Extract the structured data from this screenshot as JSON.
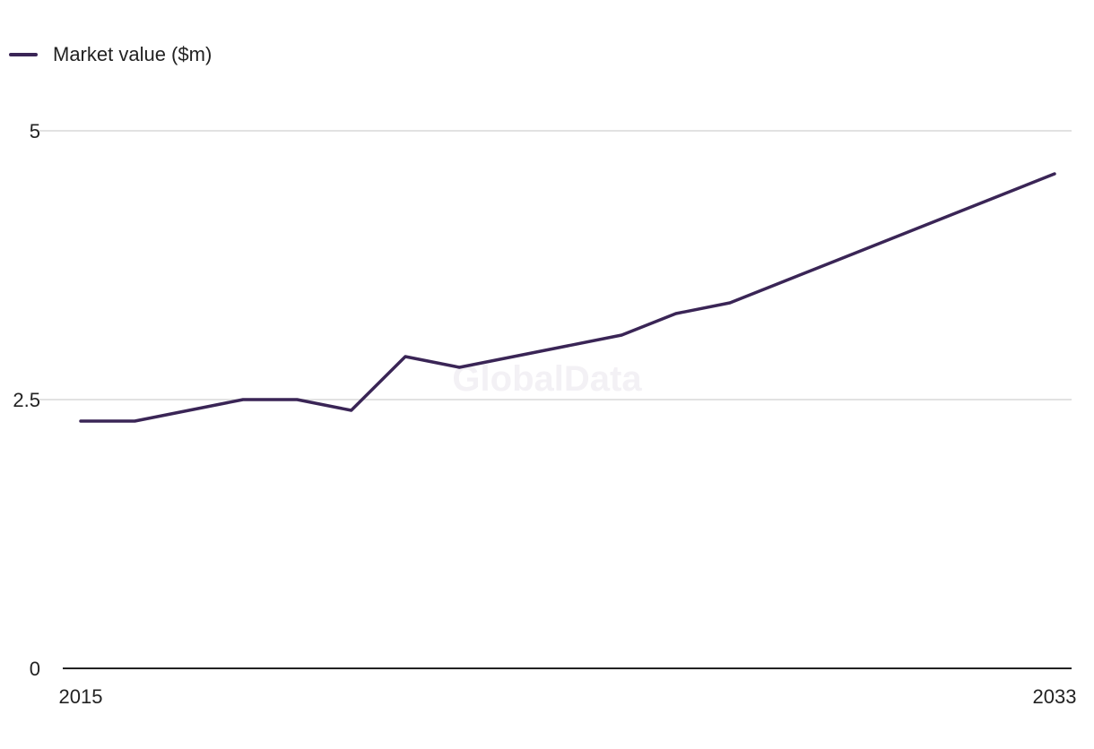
{
  "watermark": "GlobalData",
  "chart_data": {
    "type": "line",
    "title": "",
    "xlabel": "",
    "ylabel": "",
    "x": [
      2015,
      2016,
      2017,
      2018,
      2019,
      2020,
      2021,
      2022,
      2023,
      2024,
      2025,
      2026,
      2027,
      2028,
      2029,
      2030,
      2031,
      2032,
      2033
    ],
    "series": [
      {
        "name": "Market value ($m)",
        "color": "#3a2556",
        "values": [
          2.3,
          2.3,
          2.4,
          2.5,
          2.5,
          2.4,
          2.9,
          2.8,
          2.9,
          3.0,
          3.1,
          3.3,
          3.4,
          3.6,
          3.8,
          4.0,
          4.2,
          4.4,
          4.6
        ]
      }
    ],
    "x_tick_labels": [
      "2015",
      "2033"
    ],
    "y_ticks": [
      0,
      2.5,
      5
    ],
    "y_tick_labels": [
      "0",
      "2.5",
      "5"
    ],
    "ylim": [
      0,
      5
    ],
    "grid": true,
    "legend_position": "top-left"
  }
}
